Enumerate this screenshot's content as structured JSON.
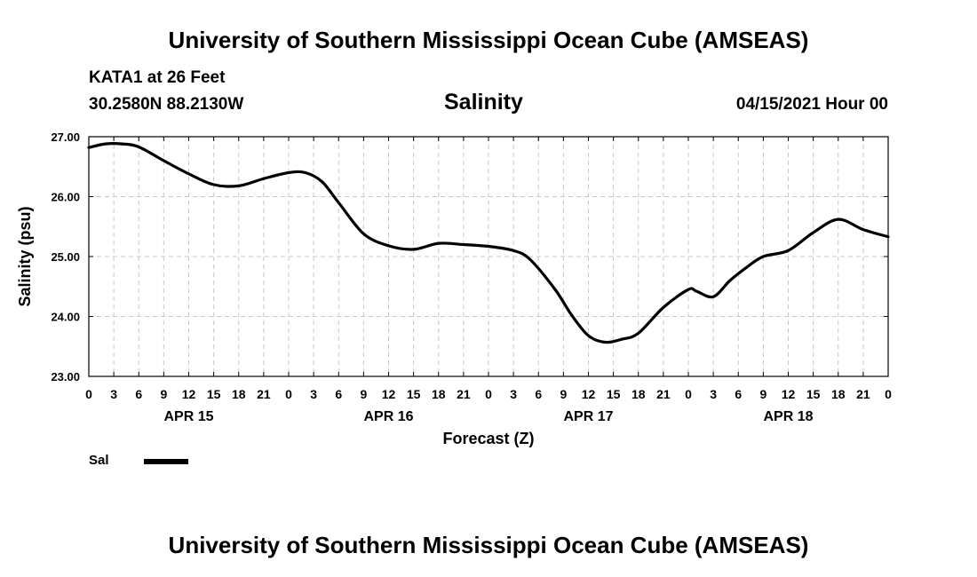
{
  "header": {
    "title_top": "University of Southern Mississippi Ocean Cube (AMSEAS)",
    "station": "KATA1 at 26 Feet",
    "coords": "30.2580N  88.2130W",
    "variable": "Salinity",
    "date": "04/15/2021 Hour 00",
    "title_bottom": "University of Southern Mississippi Ocean Cube (AMSEAS)"
  },
  "chart_data": {
    "type": "line",
    "title": "Salinity",
    "xlabel": "Forecast (Z)",
    "ylabel": "Salinity (psu)",
    "ylim": [
      23,
      27
    ],
    "xlim": [
      0,
      96
    ],
    "grid": true,
    "y_ticks": [
      "27.00",
      "26.00",
      "25.00",
      "24.00",
      "23.00"
    ],
    "y_tick_values": [
      27,
      26,
      25,
      24,
      23
    ],
    "x_tick_labels": [
      "0",
      "3",
      "6",
      "9",
      "12",
      "15",
      "18",
      "21",
      "0",
      "3",
      "6",
      "9",
      "12",
      "15",
      "18",
      "21",
      "0",
      "3",
      "6",
      "9",
      "12",
      "15",
      "18",
      "21",
      "0",
      "3",
      "6",
      "9",
      "12",
      "15",
      "18",
      "21",
      "0"
    ],
    "day_labels": [
      {
        "label": "APR 15",
        "hour": 12
      },
      {
        "label": "APR 16",
        "hour": 36
      },
      {
        "label": "APR 17",
        "hour": 60
      },
      {
        "label": "APR 18",
        "hour": 84
      }
    ],
    "legend": {
      "label": "Sal",
      "position": "bottom-left"
    },
    "series": [
      {
        "name": "Sal",
        "color": "#000000",
        "x": [
          0,
          2,
          4,
          6,
          9,
          12,
          15,
          18,
          21,
          24,
          26,
          28,
          30,
          33,
          36,
          39,
          42,
          45,
          48,
          51,
          53,
          56,
          58,
          60,
          62,
          64,
          66,
          69,
          72,
          73,
          75,
          77,
          79,
          81,
          84,
          87,
          90,
          93,
          96
        ],
        "values": [
          26.82,
          26.88,
          26.88,
          26.83,
          26.6,
          26.38,
          26.2,
          26.18,
          26.3,
          26.4,
          26.4,
          26.25,
          25.9,
          25.38,
          25.18,
          25.12,
          25.22,
          25.2,
          25.17,
          25.1,
          24.95,
          24.45,
          24.02,
          23.68,
          23.57,
          23.62,
          23.72,
          24.15,
          24.45,
          24.42,
          24.33,
          24.6,
          24.82,
          25.0,
          25.1,
          25.4,
          25.62,
          25.45,
          25.33
        ]
      }
    ]
  }
}
